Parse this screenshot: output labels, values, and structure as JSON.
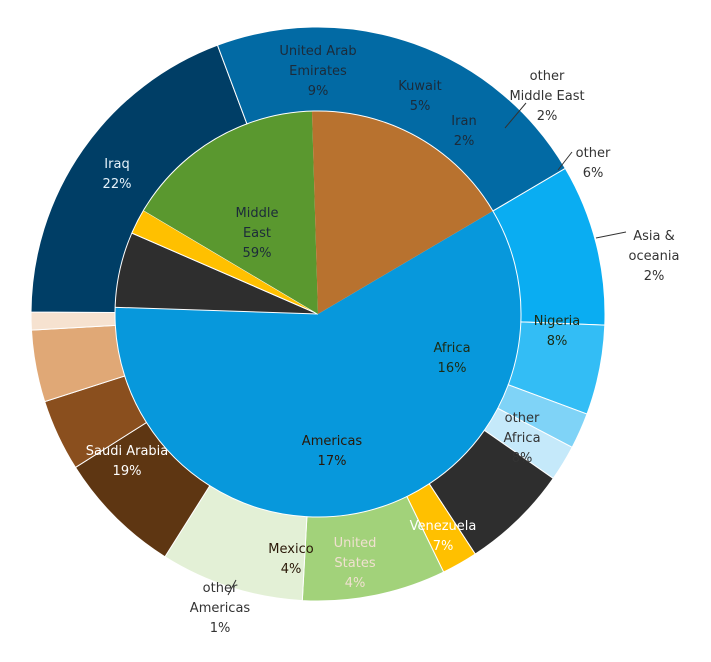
{
  "chart_data": {
    "type": "pie",
    "start_angle_deg": 59.5,
    "direction": "clockwise",
    "inner": [
      {
        "label": "Middle East",
        "value": 59,
        "color": "#0798dc",
        "labelColor": "#1c2b3a"
      },
      {
        "label": "other",
        "value": 6,
        "color": "#2e2e2e",
        "labelColor": "#ffffff",
        "outer": true
      },
      {
        "label": "Asia & oceania",
        "value": 2,
        "color": "#ffc000",
        "labelColor": "#333333",
        "outer": true
      },
      {
        "label": "Africa",
        "value": 16,
        "color": "#5a982f",
        "labelColor": "#1c2b14"
      },
      {
        "label": "Americas",
        "value": 17,
        "color": "#b8722f",
        "labelColor": "#2a1808"
      }
    ],
    "outer": [
      {
        "label": "United Arab Emirates",
        "value": 9,
        "color": "#0aadf2",
        "labelColor": "#1c2b3a"
      },
      {
        "label": "Kuwait",
        "value": 5,
        "color": "#33bdf5",
        "labelColor": "#1c2b3a"
      },
      {
        "label": "Iran",
        "value": 2,
        "color": "#7fd3f7",
        "labelColor": "#1c2b3a"
      },
      {
        "label": "other Middle East",
        "value": 2,
        "color": "#c5e9fa",
        "labelColor": "#333333"
      },
      {
        "label": "other",
        "value": 6,
        "color": "#2e2e2e",
        "labelColor": "#333333"
      },
      {
        "label": "Asia & oceania",
        "value": 2,
        "color": "#ffc000",
        "labelColor": "#333333"
      },
      {
        "label": "Nigeria",
        "value": 8,
        "color": "#a2d27a",
        "labelColor": "#1c2b14"
      },
      {
        "label": "other Africa",
        "value": 8,
        "color": "#e3f0d6",
        "labelColor": "#333333"
      },
      {
        "label": "Venezuela",
        "value": 7,
        "color": "#5e3612",
        "labelColor": "#ffffff"
      },
      {
        "label": "United States",
        "value": 4,
        "color": "#8a4f1e",
        "labelColor": "#f0e0d0"
      },
      {
        "label": "Mexico",
        "value": 4,
        "color": "#e0a876",
        "labelColor": "#2a1808"
      },
      {
        "label": "other Americas",
        "value": 1,
        "color": "#f6e2d0",
        "labelColor": "#333333"
      },
      {
        "label": "Saudi Arabia",
        "value": 19,
        "color": "#003e66",
        "labelColor": "#ffffff"
      },
      {
        "label": "Iraq",
        "value": 22,
        "color": "#026aa4",
        "labelColor": "#e6f2fa"
      }
    ]
  }
}
